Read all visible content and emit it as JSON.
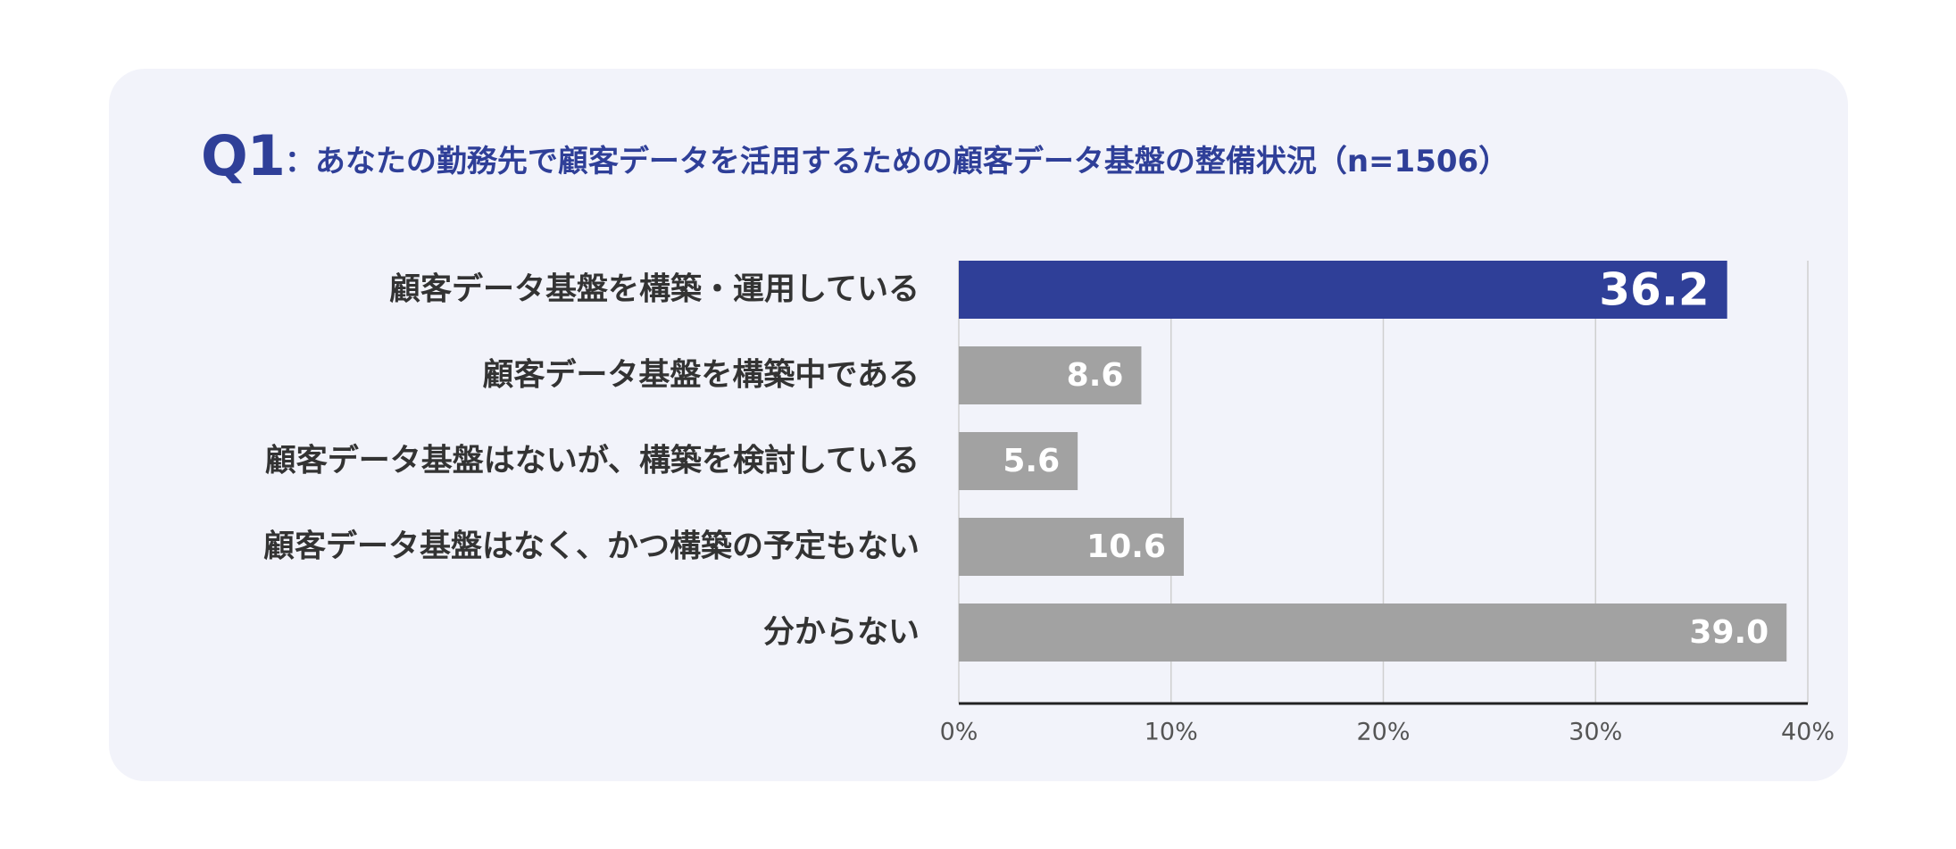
{
  "title": {
    "q_label": "Q1",
    "question": "：あなたの勤務先で顧客データを活用するための顧客データ基盤の整備状況（n=1506）"
  },
  "colors": {
    "highlight_bar": "#2f3f98",
    "bar": "#a2a2a2",
    "card_background": "#f2f3fa",
    "title": "#2f3f98"
  },
  "chart_data": {
    "type": "bar",
    "orientation": "horizontal",
    "categories": [
      "顧客データ基盤を構築・運用している",
      "顧客データ基盤を構築中である",
      "顧客データ基盤はないが、構築を検討している",
      "顧客データ基盤はなく、かつ構築の予定もない",
      "分からない"
    ],
    "values": [
      36.2,
      8.6,
      5.6,
      10.6,
      39.0
    ],
    "value_labels": [
      "36.2",
      "8.6",
      "5.6",
      "10.6",
      "39.0"
    ],
    "highlight_index": 0,
    "xlim": [
      0,
      40
    ],
    "xticks": [
      0,
      10,
      20,
      30,
      40
    ],
    "xtick_labels": [
      "0%",
      "10%",
      "20%",
      "30%",
      "40%"
    ],
    "grid": true,
    "legend": "none"
  }
}
